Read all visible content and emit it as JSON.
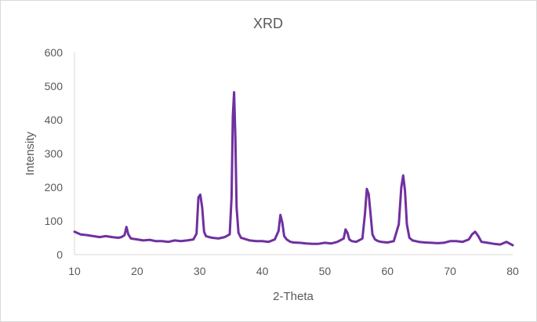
{
  "chart_data": {
    "type": "line",
    "title": "XRD",
    "xlabel": "2-Theta",
    "ylabel": "Intensity",
    "xlim": [
      10,
      80
    ],
    "ylim": [
      0,
      600
    ],
    "xticks": [
      10,
      20,
      30,
      40,
      50,
      60,
      70,
      80
    ],
    "yticks": [
      0,
      100,
      200,
      300,
      400,
      500,
      600
    ],
    "grid": false,
    "legend": "none",
    "series_color": "#7030a0",
    "series": [
      {
        "x": [
          10,
          11,
          12,
          13,
          14,
          15,
          16,
          17,
          17.5,
          18,
          18.3,
          18.6,
          19,
          20,
          21,
          22,
          23,
          24,
          25,
          26,
          27,
          28,
          29,
          29.5,
          29.8,
          30.1,
          30.4,
          30.7,
          31,
          31.5,
          32,
          33,
          34,
          34.8,
          35.1,
          35.3,
          35.5,
          35.7,
          35.9,
          36.2,
          36.6,
          37,
          38,
          39,
          40,
          41,
          42,
          42.6,
          42.9,
          43.2,
          43.5,
          43.9,
          44.5,
          45,
          46,
          47,
          48,
          49,
          50,
          51,
          52,
          53,
          53.3,
          53.6,
          53.9,
          54.3,
          55,
          56,
          56.4,
          56.7,
          57,
          57.3,
          57.6,
          58,
          58.5,
          59,
          60,
          61,
          61.8,
          62.2,
          62.5,
          62.8,
          63.1,
          63.5,
          64,
          65,
          66,
          67,
          68,
          69,
          70,
          71,
          72,
          73,
          73.5,
          74,
          74.5,
          75,
          76,
          77,
          78,
          79,
          80
        ],
        "y": [
          68,
          60,
          58,
          55,
          52,
          55,
          52,
          50,
          52,
          58,
          82,
          60,
          48,
          45,
          42,
          44,
          40,
          40,
          38,
          42,
          40,
          42,
          45,
          62,
          170,
          178,
          140,
          68,
          55,
          52,
          50,
          48,
          52,
          60,
          170,
          410,
          482,
          350,
          140,
          65,
          50,
          48,
          42,
          40,
          40,
          38,
          45,
          70,
          118,
          95,
          55,
          45,
          38,
          36,
          35,
          33,
          32,
          32,
          35,
          33,
          38,
          48,
          75,
          65,
          45,
          40,
          38,
          48,
          120,
          195,
          180,
          120,
          60,
          45,
          40,
          38,
          36,
          40,
          90,
          200,
          235,
          190,
          90,
          50,
          42,
          38,
          36,
          35,
          34,
          35,
          40,
          40,
          38,
          45,
          60,
          68,
          55,
          38,
          35,
          32,
          30,
          38,
          28
        ]
      }
    ]
  }
}
